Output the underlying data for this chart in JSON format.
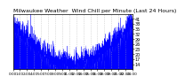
{
  "title": "Milwaukee Weather  Wind Chill per Minute (Last 24 Hours)",
  "line_color": "#0000ff",
  "fill_color": "#0000ff",
  "bg_color": "#ffffff",
  "plot_bg_color": "#ffffff",
  "grid_color": "#b0b0b0",
  "ylim": [
    11,
    44
  ],
  "yticks": [
    14,
    17,
    20,
    23,
    26,
    29,
    32,
    35,
    38,
    41
  ],
  "num_points": 1440,
  "seed": 42,
  "title_fontsize": 4.5,
  "tick_fontsize": 3.5
}
